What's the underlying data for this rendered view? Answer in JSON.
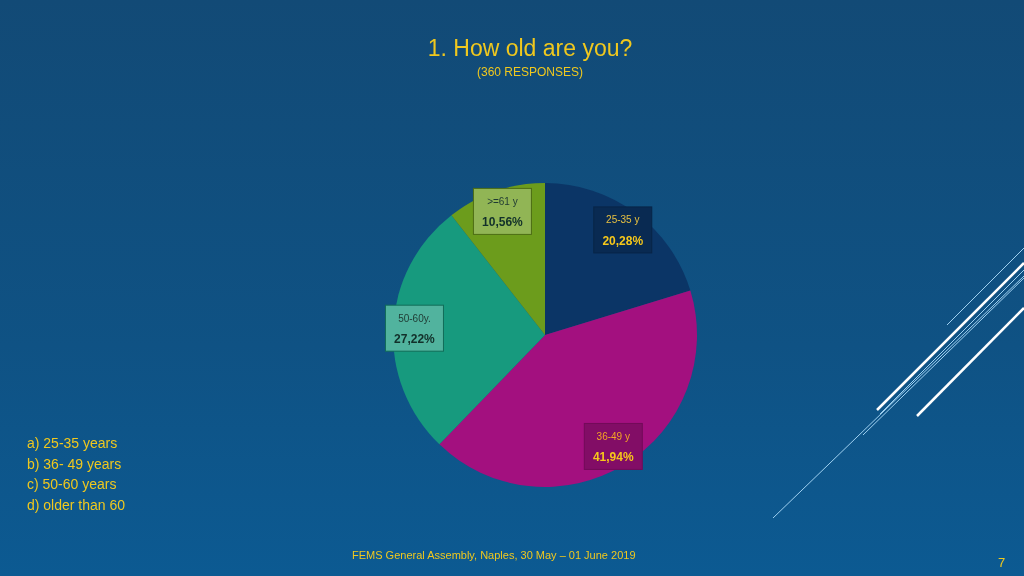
{
  "chart_data": {
    "type": "pie",
    "title": "1. How old are you?",
    "subtitle": "(360 RESPONSES)",
    "categories": [
      "25-35 y",
      "36-49 y",
      "50-60y.",
      ">=61 y"
    ],
    "values": [
      20.28,
      41.94,
      27.22,
      10.56
    ],
    "colors": [
      "#0b3566",
      "#a3107f",
      "#179a7e",
      "#6c9c1c"
    ],
    "value_labels": [
      "20,28%",
      "41,94%",
      "27,22%",
      "10,56%"
    ],
    "annotations": [
      "a) 25-35 years",
      "b) 36- 49 years",
      "c) 50-60 years",
      "d) older than 60",
      "FEMS General Assembly, Naples, 30 May – 01 June 2019",
      "7"
    ]
  }
}
